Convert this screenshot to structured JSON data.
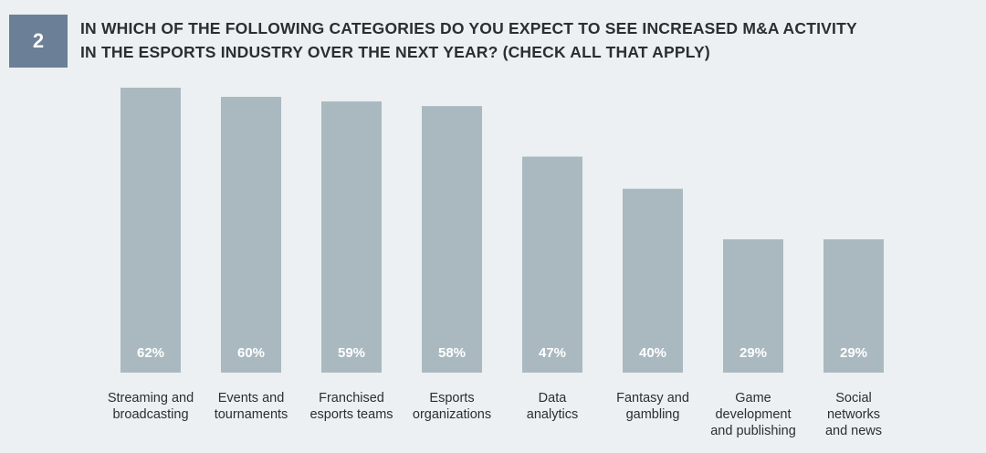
{
  "header": {
    "number": "2",
    "title_line1": "IN WHICH OF THE FOLLOWING CATEGORIES DO YOU EXPECT TO SEE INCREASED M&A ACTIVITY",
    "title_line2": "IN THE ESPORTS INDUSTRY OVER THE NEXT YEAR? (CHECK ALL THAT APPLY)"
  },
  "colors": {
    "background": "#ecf0f2",
    "badge": "#6b7f97",
    "bar": "#aab9c0",
    "value_label": "#ffffff",
    "text": "#2b2e33"
  },
  "chart_data": {
    "type": "bar",
    "title": "IN WHICH OF THE FOLLOWING CATEGORIES DO YOU EXPECT TO SEE INCREASED M&A ACTIVITY IN THE ESPORTS INDUSTRY OVER THE NEXT YEAR? (CHECK ALL THAT APPLY)",
    "categories": [
      [
        "Streaming and",
        "broadcasting"
      ],
      [
        "Events and",
        "tournaments"
      ],
      [
        "Franchised",
        "esports teams"
      ],
      [
        "Esports",
        "organizations"
      ],
      [
        "Data",
        "analytics"
      ],
      [
        "Fantasy and",
        "gambling"
      ],
      [
        "Game",
        "development",
        "and publishing"
      ],
      [
        "Social",
        "networks",
        "and news"
      ]
    ],
    "values": [
      62,
      60,
      59,
      58,
      47,
      40,
      29,
      29
    ],
    "value_labels": [
      "62%",
      "60%",
      "59%",
      "58%",
      "47%",
      "40%",
      "29%",
      "29%"
    ],
    "unit": "%",
    "ylim": [
      0,
      62
    ],
    "grid": false,
    "legend": "none"
  }
}
